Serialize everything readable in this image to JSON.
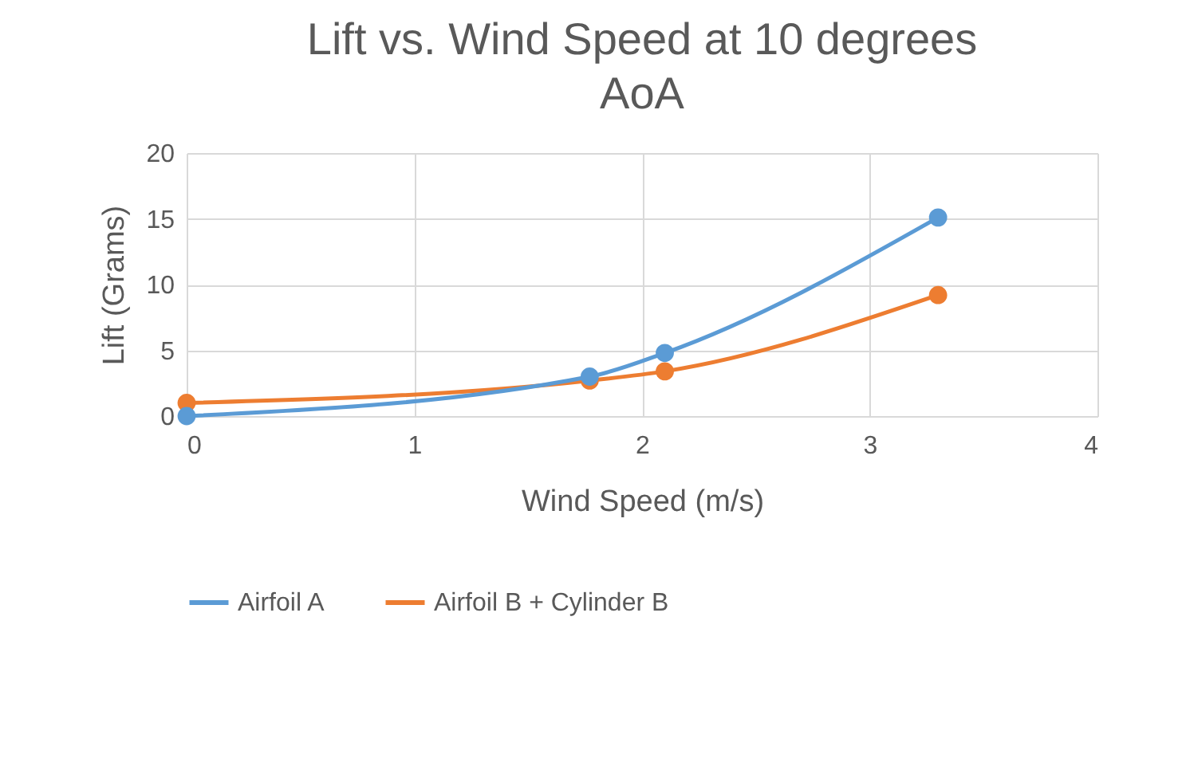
{
  "chart_data": {
    "type": "line",
    "title": "Lift vs. Wind Speed at 10 degrees AoA",
    "xlabel": "Wind Speed (m/s)",
    "ylabel": "Lift (Grams)",
    "x": [
      0,
      1.77,
      2.1,
      3.3
    ],
    "series": [
      {
        "name": "Airfoil A",
        "color": "#5b9bd5",
        "values": [
          0,
          3.0,
          4.8,
          15.1
        ]
      },
      {
        "name": "Airfoil B + Cylinder B",
        "color": "#ed7d31",
        "values": [
          1.0,
          2.7,
          3.4,
          9.2
        ]
      }
    ],
    "xlim": [
      0,
      4
    ],
    "xticks": [
      0,
      1,
      2,
      3,
      4
    ],
    "ylim": [
      0,
      20
    ],
    "yticks": [
      0,
      5,
      10,
      15,
      20
    ],
    "grid": true,
    "legend": "bottom",
    "marker": "circle",
    "line_style": "solid"
  }
}
